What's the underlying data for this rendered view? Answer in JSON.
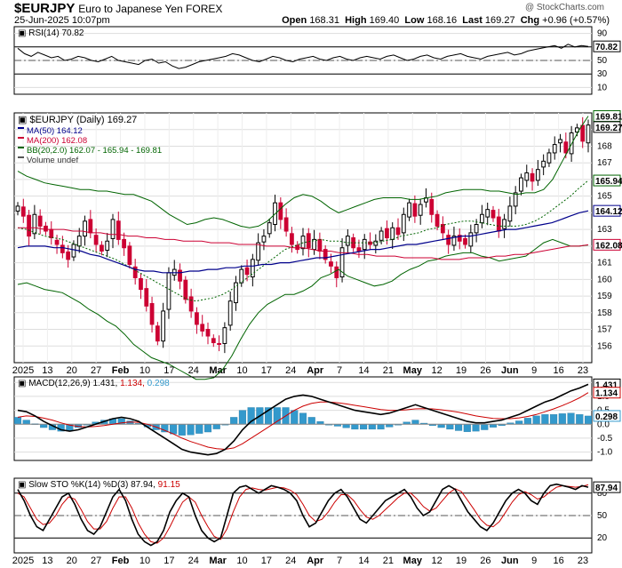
{
  "header": {
    "symbol": "$EURJPY",
    "description": "Euro to Japanese Yen FOREX",
    "brand": "@ StockCharts.com",
    "date": "25-Jun-2025 10:07pm",
    "open_label": "Open",
    "open": "168.31",
    "high_label": "High",
    "high": "169.40",
    "low_label": "Low",
    "low": "168.16",
    "last_label": "Last",
    "last": "169.27",
    "chg_label": "Chg",
    "chg": "+0.96 (+0.57%)"
  },
  "colors": {
    "up": "#000000",
    "down": "#cc0033",
    "ma50": "#00008b",
    "ma200": "#cc0033",
    "bb": "#006400",
    "macd_hist": "#3399cc",
    "stoch_d": "#cc0000"
  },
  "chart_data": [
    {
      "type": "line",
      "panel": "rsi",
      "legend": "RSI(14) 70.82",
      "ylim": [
        0,
        100
      ],
      "y_ticks": [
        10,
        30,
        50,
        70,
        90
      ],
      "guide_lines": [
        30,
        70
      ],
      "last_value_tag": "70.82",
      "values": [
        68,
        60,
        56,
        62,
        58,
        54,
        56,
        50,
        52,
        56,
        54,
        50,
        48,
        52,
        56,
        50,
        48,
        46,
        44,
        50,
        52,
        46,
        48,
        42,
        38,
        40,
        44,
        48,
        50,
        52,
        54,
        56,
        60,
        58,
        54,
        50,
        48,
        52,
        56,
        54,
        50,
        48,
        52,
        54,
        56,
        52,
        50,
        54,
        56,
        52,
        50,
        54,
        56,
        54,
        52,
        56,
        58,
        54,
        50,
        52,
        56,
        58,
        54,
        52,
        56,
        58,
        60,
        56,
        54,
        52,
        56,
        58,
        60,
        62,
        58,
        60,
        64,
        66,
        68,
        70,
        72,
        68,
        74,
        70,
        72,
        70.82
      ]
    },
    {
      "type": "candlestick",
      "panel": "price",
      "title": "$EURJPY (Daily) 169.27",
      "legend": [
        "MA(50) 164.12",
        "MA(200) 162.08",
        "BB(20,2.0) 162.07 - 165.94 - 169.81",
        "Volume undef"
      ],
      "ylim": [
        155,
        170
      ],
      "y_ticks": [
        156,
        157,
        158,
        159,
        160,
        161,
        162,
        163,
        164,
        165,
        166,
        167,
        168,
        169
      ],
      "value_tags": {
        "bb_upper": "169.81",
        "last": "169.27",
        "bb_mid": "165.94",
        "ma50": "164.12",
        "ma200": "162.08"
      },
      "x_labels": [
        "2025",
        "13",
        "20",
        "27",
        "Feb",
        "10",
        "17",
        "24",
        "Mar",
        "10",
        "17",
        "24",
        "Apr",
        "7",
        "14",
        "21",
        "May",
        "12",
        "19",
        "26",
        "Jun",
        "9",
        "16",
        "23"
      ],
      "close": [
        164.4,
        163.8,
        162.6,
        163.9,
        163.2,
        162.9,
        162.5,
        162.1,
        161.6,
        161.2,
        162.1,
        162.6,
        163.5,
        162.8,
        162.1,
        161.7,
        162.3,
        163.6,
        162.4,
        161.9,
        160.9,
        160.1,
        159.4,
        158.4,
        157.3,
        156.3,
        158.1,
        160.4,
        160.6,
        159.9,
        158.8,
        158.1,
        157.3,
        156.9,
        156.6,
        156.2,
        156.1,
        157.1,
        158.7,
        159.8,
        160.6,
        160.3,
        161.2,
        162.2,
        162.6,
        163.4,
        164.6,
        163.6,
        162.9,
        162.1,
        161.8,
        162.6,
        161.9,
        162.4,
        161.7,
        161.2,
        160.8,
        160.1,
        161.9,
        162.6,
        161.9,
        161.7,
        162.4,
        162.1,
        162.3,
        162.9,
        162.5,
        163.1,
        162.7,
        163.9,
        164.6,
        163.8,
        164.5,
        164.9,
        163.9,
        163.2,
        162.8,
        162.1,
        162.6,
        162.3,
        162.1,
        162.8,
        163.3,
        163.9,
        164.2,
        163.7,
        162.9,
        163.6,
        164.4,
        165.2,
        166.1,
        166.4,
        165.9,
        166.6,
        167.1,
        167.6,
        168.1,
        168.4,
        167.6,
        168.8,
        169.1,
        168.3,
        169.27
      ],
      "ma50": [
        161.9,
        162.0,
        162.0,
        162.0,
        161.9,
        161.9,
        161.8,
        161.7,
        161.5,
        161.4,
        161.2,
        161.0,
        160.8,
        160.6,
        160.5,
        160.5,
        160.4,
        160.4,
        160.4,
        160.5,
        160.5,
        160.6,
        160.6,
        160.7,
        160.7,
        160.8,
        160.8,
        160.9,
        160.9,
        161.0,
        161.0,
        161.1,
        161.2,
        161.3,
        161.3,
        161.4,
        161.5,
        161.6,
        161.7,
        161.8,
        161.8,
        161.9,
        162.0,
        162.1,
        162.1,
        162.2,
        162.3,
        162.4,
        162.5,
        162.6,
        162.6,
        162.7,
        162.8,
        162.9,
        163.0,
        163.0,
        163.1,
        163.2,
        163.3,
        163.4,
        163.6,
        163.8,
        164.0,
        164.12
      ],
      "ma200": [
        163.1,
        163.1,
        163.1,
        163.0,
        163.0,
        163.0,
        162.9,
        162.9,
        162.8,
        162.8,
        162.7,
        162.7,
        162.6,
        162.6,
        162.5,
        162.5,
        162.4,
        162.4,
        162.3,
        162.3,
        162.3,
        162.2,
        162.2,
        162.2,
        162.1,
        162.1,
        162.1,
        162.0,
        162.0,
        162.0,
        161.9,
        161.9,
        161.8,
        161.7,
        161.7,
        161.6,
        161.6,
        161.5,
        161.5,
        161.4,
        161.4,
        161.4,
        161.3,
        161.3,
        161.3,
        161.3,
        161.2,
        161.2,
        161.2,
        161.3,
        161.3,
        161.3,
        161.4,
        161.4,
        161.5,
        161.5,
        161.6,
        161.7,
        161.8,
        161.9,
        162.0,
        162.0,
        162.08
      ],
      "bb_upper": [
        166.5,
        166.2,
        166.0,
        165.8,
        165.7,
        165.6,
        165.5,
        165.4,
        165.4,
        165.3,
        165.3,
        165.2,
        165.1,
        165.1,
        164.9,
        164.7,
        164.3,
        163.9,
        163.6,
        163.3,
        163.4,
        163.6,
        163.7,
        163.6,
        163.4,
        163.2,
        163.1,
        163.2,
        163.5,
        164.0,
        164.5,
        164.9,
        165.1,
        165.0,
        164.7,
        164.3,
        164.0,
        164.2,
        164.4,
        164.6,
        164.8,
        164.9,
        164.9,
        164.9,
        164.8,
        164.8,
        164.9,
        165.0,
        165.2,
        165.3,
        165.4,
        165.4,
        165.4,
        165.3,
        165.3,
        165.2,
        165.1,
        165.2,
        165.2,
        165.4,
        166.0,
        167.0,
        168.0,
        169.0,
        169.81
      ],
      "bb_mid": [
        163.1,
        163.0,
        162.8,
        162.6,
        162.5,
        162.4,
        162.2,
        162.0,
        161.8,
        161.6,
        161.4,
        161.2,
        160.9,
        160.6,
        160.3,
        160.0,
        159.7,
        159.4,
        159.1,
        158.8,
        158.7,
        158.8,
        158.9,
        159.1,
        159.4,
        159.8,
        160.2,
        160.6,
        161.0,
        161.4,
        161.8,
        162.0,
        162.2,
        162.3,
        162.4,
        162.3,
        162.3,
        162.2,
        162.2,
        162.2,
        162.2,
        162.3,
        162.4,
        162.6,
        162.7,
        162.8,
        163.0,
        163.1,
        163.3,
        163.4,
        163.5,
        163.5,
        163.4,
        163.3,
        163.2,
        163.2,
        163.2,
        163.3,
        163.5,
        163.8,
        164.2,
        164.6,
        165.0,
        165.5,
        165.94
      ],
      "bb_lower": [
        159.7,
        159.8,
        159.6,
        159.4,
        159.3,
        159.2,
        158.9,
        158.6,
        158.2,
        157.9,
        157.5,
        157.2,
        156.7,
        156.1,
        155.7,
        155.3,
        155.1,
        154.9,
        154.6,
        154.3,
        154.0,
        154.0,
        154.1,
        154.6,
        155.4,
        156.4,
        157.3,
        158.0,
        158.5,
        158.8,
        159.1,
        159.1,
        159.3,
        159.6,
        160.1,
        160.3,
        160.6,
        160.2,
        160.0,
        159.8,
        159.6,
        159.7,
        159.9,
        160.3,
        160.6,
        160.8,
        161.1,
        161.2,
        161.4,
        161.5,
        161.6,
        161.6,
        161.4,
        161.3,
        161.1,
        161.2,
        161.3,
        161.4,
        161.8,
        162.2,
        162.4,
        162.2,
        162.0,
        162.0,
        162.07
      ]
    },
    {
      "type": "line",
      "panel": "macd",
      "legend_name": "MACD(12,26,9)",
      "macd_value": "1.431",
      "signal_value": "1.134",
      "hist_value": "0.298",
      "ylim": [
        -1.3,
        1.7
      ],
      "y_ticks": [
        -1.0,
        -0.5,
        0.0,
        0.5,
        1.0,
        1.5
      ],
      "value_tags": [
        "1.431",
        "1.134",
        "0.298"
      ],
      "macd": [
        0.5,
        0.45,
        0.3,
        0.1,
        -0.05,
        -0.2,
        -0.25,
        -0.2,
        -0.1,
        0.0,
        0.1,
        0.2,
        0.25,
        0.2,
        0.1,
        -0.1,
        -0.3,
        -0.5,
        -0.7,
        -0.9,
        -1.0,
        -1.05,
        -1.1,
        -1.05,
        -0.9,
        -0.6,
        -0.2,
        0.1,
        0.3,
        0.5,
        0.7,
        0.9,
        1.0,
        1.05,
        1.0,
        0.9,
        0.8,
        0.7,
        0.6,
        0.5,
        0.45,
        0.4,
        0.35,
        0.4,
        0.5,
        0.6,
        0.7,
        0.6,
        0.5,
        0.4,
        0.3,
        0.2,
        0.1,
        0.05,
        0.05,
        0.1,
        0.15,
        0.25,
        0.35,
        0.5,
        0.65,
        0.8,
        0.9,
        1.05,
        1.2,
        1.3,
        1.431
      ],
      "signal": [
        0.25,
        0.3,
        0.28,
        0.22,
        0.15,
        0.05,
        -0.03,
        -0.08,
        -0.1,
        -0.08,
        -0.05,
        0.0,
        0.05,
        0.08,
        0.07,
        0.0,
        -0.1,
        -0.22,
        -0.35,
        -0.5,
        -0.62,
        -0.72,
        -0.82,
        -0.88,
        -0.9,
        -0.85,
        -0.7,
        -0.5,
        -0.3,
        -0.1,
        0.1,
        0.3,
        0.5,
        0.65,
        0.75,
        0.8,
        0.8,
        0.77,
        0.73,
        0.68,
        0.63,
        0.58,
        0.53,
        0.5,
        0.5,
        0.52,
        0.55,
        0.56,
        0.55,
        0.52,
        0.48,
        0.43,
        0.37,
        0.3,
        0.25,
        0.21,
        0.2,
        0.2,
        0.23,
        0.28,
        0.35,
        0.45,
        0.55,
        0.67,
        0.8,
        0.95,
        1.134
      ],
      "histogram": [
        0.25,
        0.15,
        0.02,
        -0.12,
        -0.2,
        -0.25,
        -0.22,
        -0.12,
        0.0,
        0.08,
        0.15,
        0.2,
        0.2,
        0.12,
        0.03,
        -0.1,
        -0.2,
        -0.28,
        -0.35,
        -0.4,
        -0.38,
        -0.33,
        -0.28,
        -0.17,
        0.0,
        0.25,
        0.5,
        0.6,
        0.6,
        0.6,
        0.6,
        0.6,
        0.5,
        0.4,
        0.25,
        0.1,
        0.0,
        -0.07,
        -0.13,
        -0.18,
        -0.18,
        -0.18,
        -0.18,
        -0.1,
        0.0,
        0.08,
        0.15,
        0.04,
        -0.05,
        -0.12,
        -0.18,
        -0.23,
        -0.27,
        -0.25,
        -0.2,
        -0.11,
        -0.05,
        0.05,
        0.12,
        0.22,
        0.3,
        0.35,
        0.35,
        0.38,
        0.4,
        0.35,
        0.298
      ]
    },
    {
      "type": "line",
      "panel": "stoch",
      "legend_name": "Slow STO %K(14) %D(3)",
      "k_value": "87.94",
      "d_value": "91.15",
      "ylim": [
        0,
        100
      ],
      "y_ticks": [
        20,
        50,
        80
      ],
      "guide_lines": [
        20,
        80
      ],
      "value_tag": "87.94",
      "k": [
        85,
        70,
        50,
        35,
        30,
        45,
        60,
        75,
        80,
        65,
        45,
        30,
        25,
        35,
        55,
        75,
        85,
        70,
        45,
        25,
        15,
        10,
        15,
        30,
        55,
        70,
        80,
        75,
        50,
        30,
        20,
        15,
        20,
        50,
        80,
        88,
        90,
        85,
        80,
        85,
        90,
        88,
        85,
        80,
        70,
        50,
        35,
        40,
        55,
        70,
        80,
        85,
        75,
        60,
        45,
        40,
        50,
        60,
        70,
        75,
        80,
        85,
        75,
        60,
        50,
        55,
        70,
        85,
        90,
        85,
        70,
        55,
        45,
        35,
        30,
        40,
        55,
        70,
        80,
        85,
        80,
        70,
        65,
        80,
        90,
        92,
        90,
        88,
        85,
        90,
        87.94
      ],
      "d": [
        80,
        75,
        60,
        45,
        38,
        40,
        50,
        65,
        75,
        72,
        58,
        42,
        32,
        32,
        42,
        60,
        75,
        75,
        60,
        40,
        25,
        15,
        13,
        20,
        35,
        52,
        68,
        75,
        68,
        50,
        35,
        22,
        18,
        32,
        55,
        75,
        85,
        87,
        85,
        84,
        86,
        88,
        87,
        84,
        78,
        65,
        50,
        42,
        45,
        55,
        68,
        78,
        78,
        70,
        58,
        48,
        45,
        50,
        58,
        66,
        74,
        80,
        80,
        72,
        62,
        56,
        60,
        70,
        80,
        86,
        82,
        70,
        58,
        45,
        37,
        35,
        42,
        55,
        68,
        78,
        82,
        78,
        72,
        75,
        82,
        88,
        90,
        89,
        88,
        89,
        91.15
      ]
    }
  ]
}
